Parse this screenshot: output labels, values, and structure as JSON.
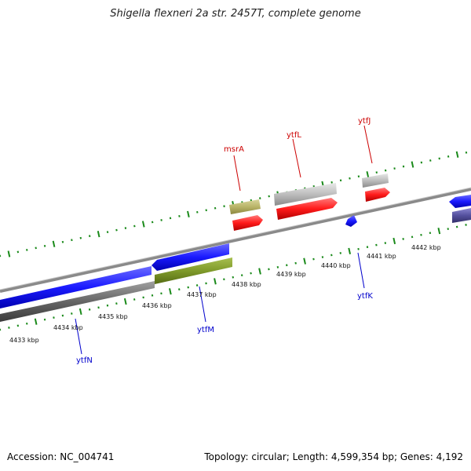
{
  "title": "Shigella flexneri 2a str. 2457T, complete genome",
  "footer": {
    "accession": "Accession: NC_004741",
    "summary": "Topology: circular; Length: 4,599,354 bp; Genes: 4,192"
  },
  "colors": {
    "forward_gene": "#1a1aff",
    "reverse_gene": "#ff1a1a",
    "pseudo_gene": "#bdbdbd",
    "misc_gene": "#7f9a2a",
    "tick": "#1a8a1a",
    "backbone": "#8a8a8a",
    "label_red": "#cc0000",
    "label_blue": "#0000cc"
  },
  "scale_labels": [
    "4433 kbp",
    "4434 kbp",
    "4435 kbp",
    "4436 kbp",
    "4437 kbp",
    "4438 kbp",
    "4439 kbp",
    "4440 kbp",
    "4441 kbp",
    "4442 kbp"
  ],
  "gene_labels": {
    "msrA": "msrA",
    "ytfL": "ytfL",
    "ytfJ": "ytfJ",
    "ytfK": "ytfK",
    "ytfM": "ytfM",
    "ytfN": "ytfN"
  }
}
